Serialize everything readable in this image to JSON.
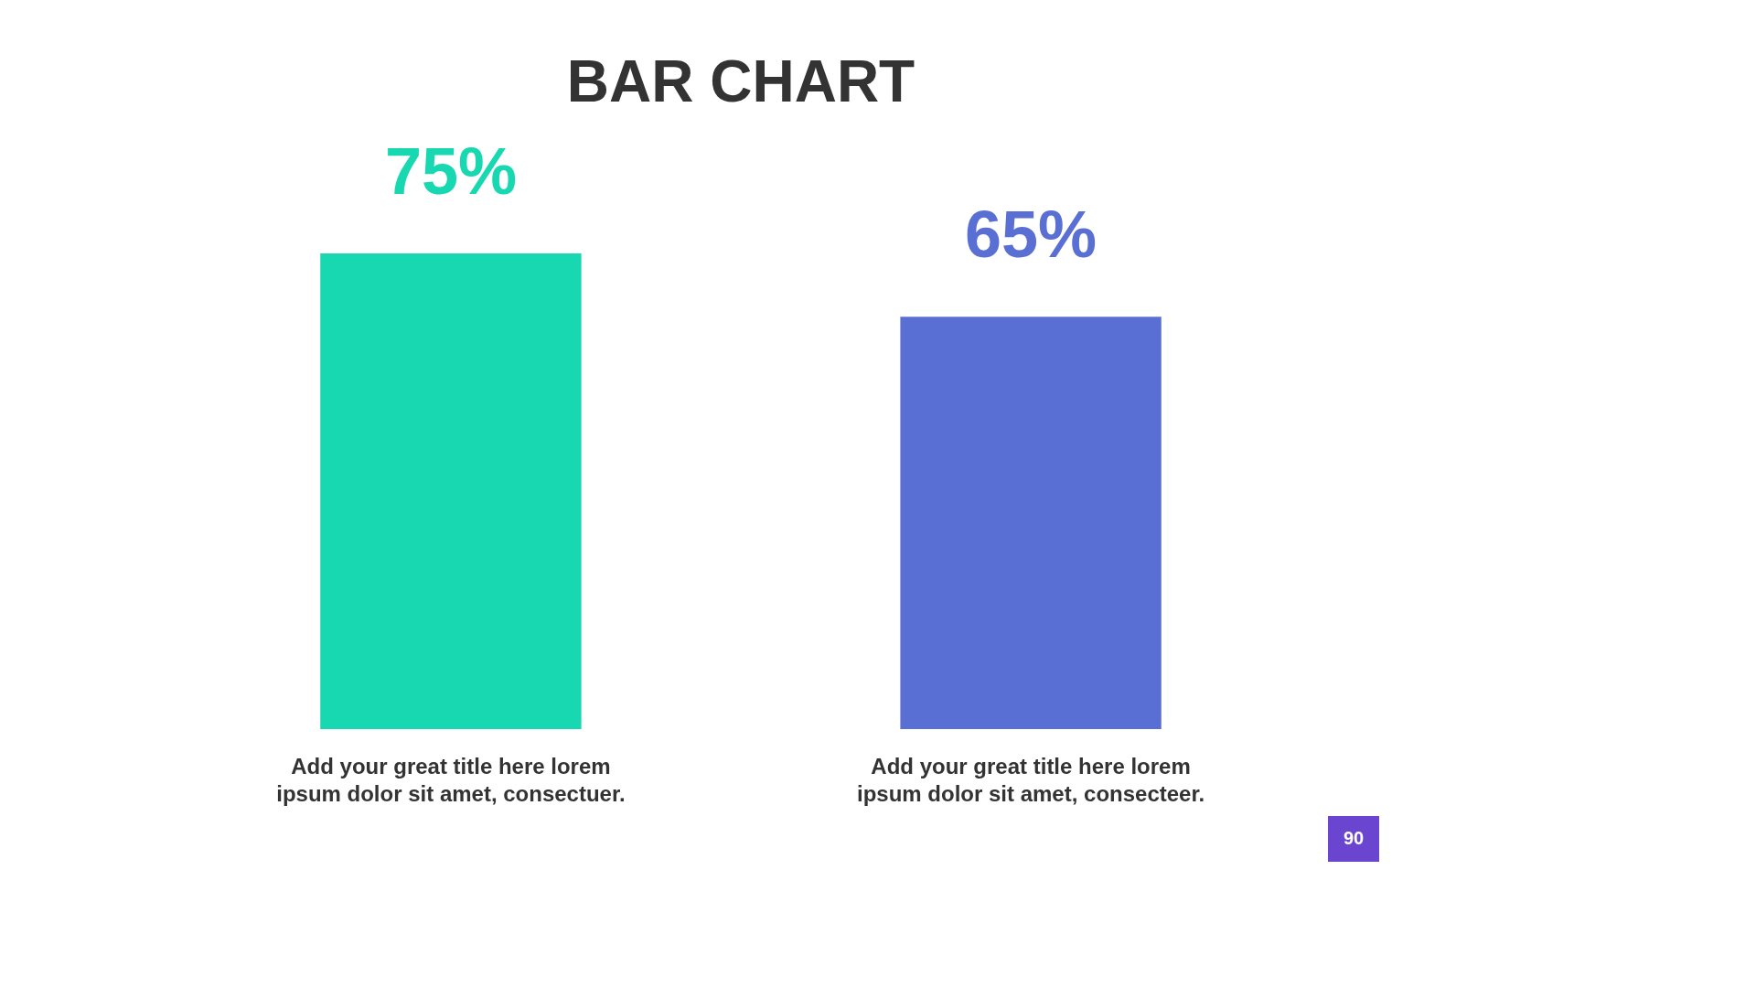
{
  "chart_data": {
    "type": "bar",
    "title": "BAR CHART",
    "categories": [
      null,
      null
    ],
    "values": [
      75,
      65
    ],
    "colors": [
      "#17d8b1",
      "#5a6fd3"
    ],
    "value_labels": [
      "75%",
      "65%"
    ],
    "annotations": [
      "Add your great title here lorem ipsum dolor sit amet, consectuer.",
      "Add your great title here lorem ipsum dolor sit amet, consecteer.",
      "90"
    ]
  }
}
